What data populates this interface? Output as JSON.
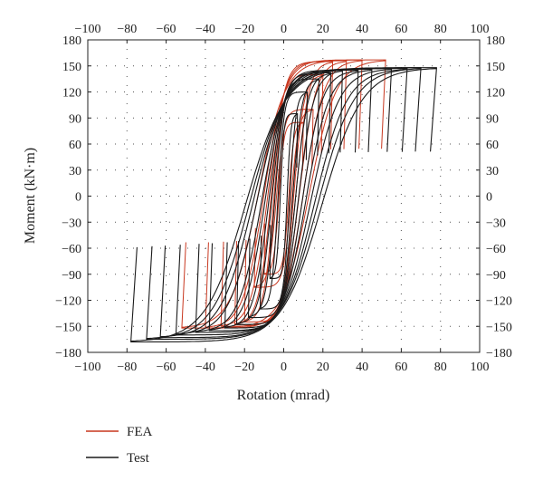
{
  "chart_data": {
    "type": "line",
    "title": "",
    "xlabel": "Rotation (mrad)",
    "ylabel": "Moment (kN·m)",
    "xlim": [
      -100,
      100
    ],
    "ylim": [
      -180,
      180
    ],
    "xticks": [
      -100,
      -80,
      -60,
      -40,
      -20,
      0,
      20,
      40,
      60,
      80,
      100
    ],
    "yticks": [
      -180,
      -150,
      -120,
      -90,
      -60,
      -30,
      0,
      30,
      60,
      90,
      120,
      150,
      180
    ],
    "grid": "dotted",
    "legend": "bottom-left",
    "series": [
      {
        "name": "FEA",
        "color": "#c8371f",
        "loops": [
          {
            "amplitude": 10,
            "peak_positive": 85,
            "peak_negative": -90
          },
          {
            "amplitude": 15,
            "peak_positive": 100,
            "peak_negative": -105
          },
          {
            "amplitude": 20,
            "peak_positive": 140,
            "peak_negative": -145
          },
          {
            "amplitude": 25,
            "peak_positive": 155,
            "peak_negative": -148
          },
          {
            "amplitude": 32,
            "peak_positive": 156,
            "peak_negative": -150
          },
          {
            "amplitude": 40,
            "peak_positive": 157,
            "peak_negative": -152
          },
          {
            "amplitude": 52,
            "peak_positive": 157,
            "peak_negative": -152
          }
        ]
      },
      {
        "name": "Test",
        "color": "#1a1a1a",
        "loops": [
          {
            "amplitude": 7,
            "peak_positive": 95,
            "peak_negative": -95
          },
          {
            "amplitude": 12,
            "peak_positive": 120,
            "peak_negative": -130
          },
          {
            "amplitude": 18,
            "peak_positive": 135,
            "peak_negative": -140
          },
          {
            "amplitude": 24,
            "peak_positive": 142,
            "peak_negative": -148
          },
          {
            "amplitude": 30,
            "peak_positive": 145,
            "peak_negative": -152
          },
          {
            "amplitude": 38,
            "peak_positive": 145,
            "peak_negative": -155
          },
          {
            "amplitude": 45,
            "peak_positive": 146,
            "peak_negative": -157
          },
          {
            "amplitude": 55,
            "peak_positive": 147,
            "peak_negative": -160
          },
          {
            "amplitude": 63,
            "peak_positive": 147,
            "peak_negative": -163
          },
          {
            "amplitude": 70,
            "peak_positive": 148,
            "peak_negative": -165
          },
          {
            "amplitude": 78,
            "peak_positive": 148,
            "peak_negative": -168
          }
        ]
      }
    ]
  }
}
